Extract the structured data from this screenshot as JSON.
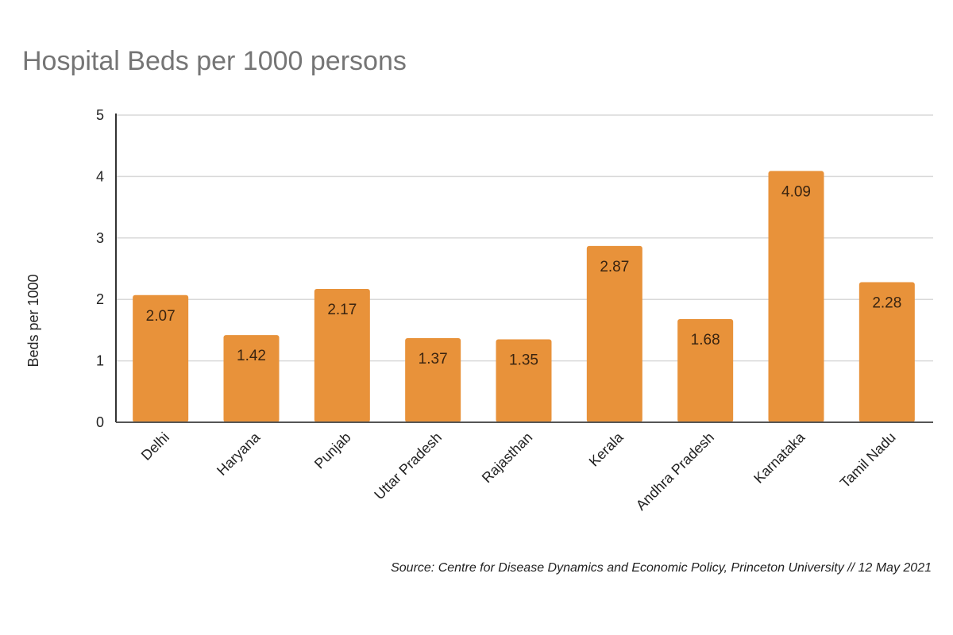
{
  "chart_data": {
    "type": "bar",
    "title": "Hospital Beds per 1000 persons",
    "xlabel": "",
    "ylabel": "Beds per 1000",
    "ylim": [
      0,
      5
    ],
    "yticks": [
      0,
      1,
      2,
      3,
      4,
      5
    ],
    "grid": true,
    "legend": "none",
    "bar_color": "#E8923A",
    "categories": [
      "Delhi",
      "Haryana",
      "Punjab",
      "Uttar Pradesh",
      "Rajasthan",
      "Kerala",
      "Andhra Pradesh",
      "Karnataka",
      "Tamil Nadu"
    ],
    "values": [
      2.07,
      1.42,
      2.17,
      1.37,
      1.35,
      2.87,
      1.68,
      4.09,
      2.28
    ],
    "data_labels": [
      "2.07",
      "1.42",
      "2.17",
      "1.37",
      "1.35",
      "2.87",
      "1.68",
      "4.09",
      "2.28"
    ],
    "source": "Source: Centre for Disease Dynamics and Economic Policy, Princeton University // 12 May 2021"
  }
}
